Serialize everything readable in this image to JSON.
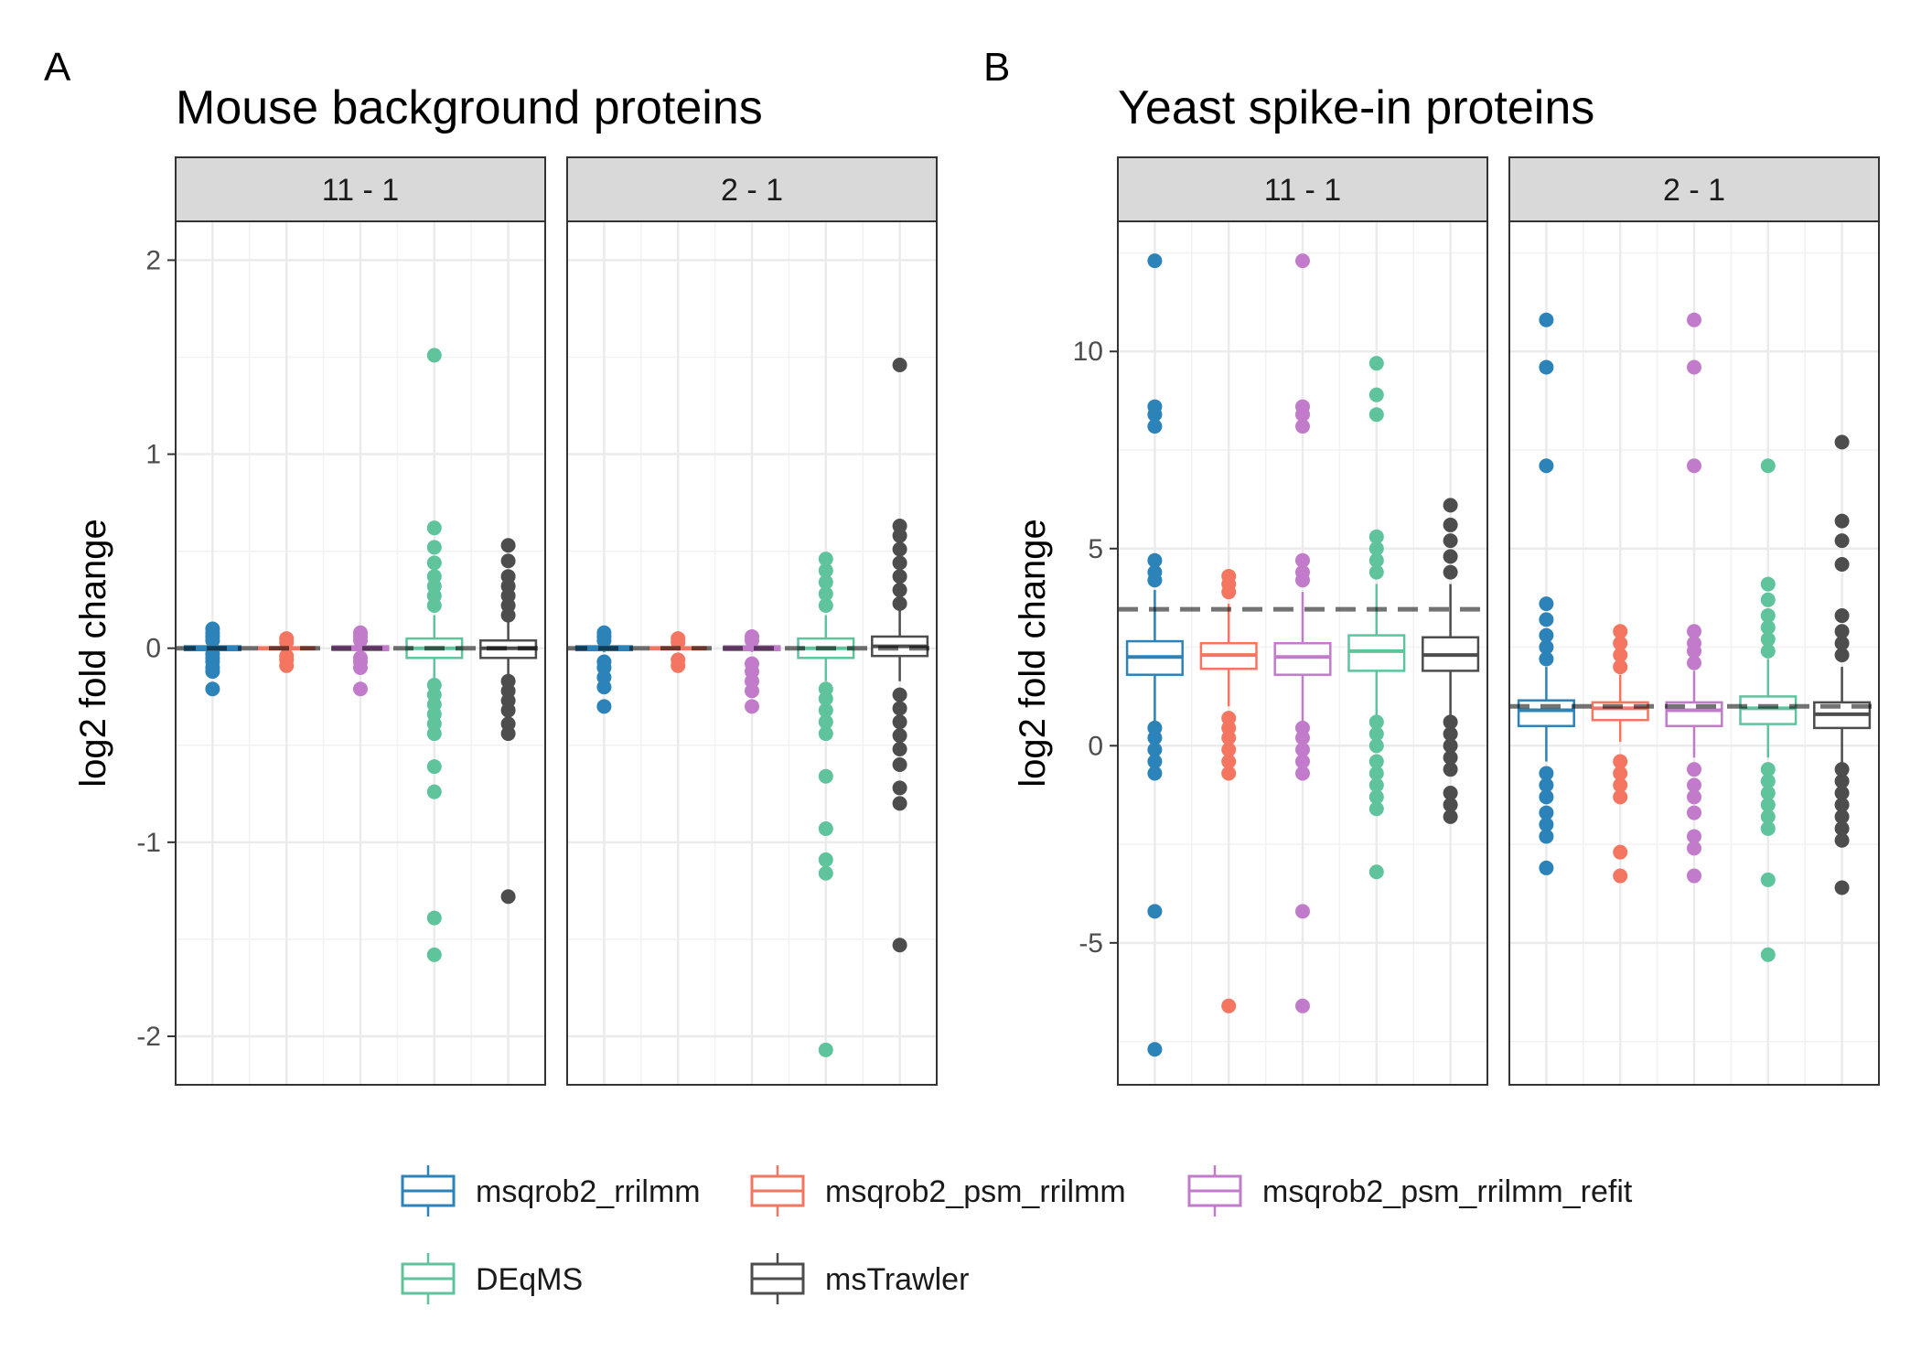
{
  "legend": {
    "items": [
      {
        "label": "msqrob2_rrilmm",
        "color": "#2B83BA"
      },
      {
        "label": "msqrob2_psm_rrilmm",
        "color": "#F47560"
      },
      {
        "label": "msqrob2_psm_rrilmm_refit",
        "color": "#C27BCB"
      },
      {
        "label": "DEqMS",
        "color": "#5FC39C"
      },
      {
        "label": "msTrawler",
        "color": "#4D4D4D"
      }
    ]
  },
  "chart_data": [
    {
      "panel_label": "A",
      "title": "Mouse background proteins",
      "type": "box",
      "ylabel": "log2 fold change",
      "ylim": [
        -2.25,
        2.2
      ],
      "yticks": [
        -2,
        -1,
        0,
        1,
        2
      ],
      "ytick_labels": [
        "-2",
        "-1",
        "0",
        "1",
        "2"
      ],
      "reference_line": 0,
      "facets": [
        {
          "label": "11 - 1",
          "series": [
            {
              "name": "msqrob2_rrilmm",
              "box": {
                "q1": -0.01,
                "median": 0.0,
                "q3": 0.01,
                "whisker_low": -0.02,
                "whisker_high": 0.02
              },
              "outliers": [
                -0.21,
                -0.12,
                -0.1,
                -0.07,
                -0.05,
                -0.03,
                0.04,
                0.06,
                0.08,
                0.1
              ]
            },
            {
              "name": "msqrob2_psm_rrilmm",
              "box": {
                "q1": -0.005,
                "median": 0.0,
                "q3": 0.005,
                "whisker_low": -0.01,
                "whisker_high": 0.01
              },
              "outliers": [
                -0.09,
                -0.06,
                -0.04,
                0.03,
                0.05
              ]
            },
            {
              "name": "msqrob2_psm_rrilmm_refit",
              "box": {
                "q1": -0.01,
                "median": 0.0,
                "q3": 0.01,
                "whisker_low": -0.02,
                "whisker_high": 0.02
              },
              "outliers": [
                -0.21,
                -0.1,
                -0.07,
                -0.05,
                0.04,
                0.06,
                0.08
              ]
            },
            {
              "name": "DEqMS",
              "box": {
                "q1": -0.05,
                "median": 0.0,
                "q3": 0.05,
                "whisker_low": -0.17,
                "whisker_high": 0.17
              },
              "outliers": [
                -1.58,
                -1.39,
                -0.74,
                -0.61,
                -0.44,
                -0.39,
                -0.34,
                -0.29,
                -0.24,
                -0.19,
                0.22,
                0.27,
                0.32,
                0.37,
                0.44,
                0.52,
                0.62,
                1.51
              ]
            },
            {
              "name": "msTrawler",
              "box": {
                "q1": -0.05,
                "median": 0.0,
                "q3": 0.04,
                "whisker_low": -0.16,
                "whisker_high": 0.16
              },
              "outliers": [
                -1.28,
                -0.44,
                -0.39,
                -0.32,
                -0.27,
                -0.22,
                -0.17,
                0.17,
                0.22,
                0.27,
                0.32,
                0.37,
                0.45,
                0.53
              ]
            }
          ]
        },
        {
          "label": "2 - 1",
          "series": [
            {
              "name": "msqrob2_rrilmm",
              "box": {
                "q1": -0.01,
                "median": 0.0,
                "q3": 0.01,
                "whisker_low": -0.02,
                "whisker_high": 0.02
              },
              "outliers": [
                -0.3,
                -0.2,
                -0.15,
                -0.1,
                -0.07,
                0.04,
                0.06,
                0.08
              ]
            },
            {
              "name": "msqrob2_psm_rrilmm",
              "box": {
                "q1": -0.005,
                "median": 0.0,
                "q3": 0.005,
                "whisker_low": -0.01,
                "whisker_high": 0.01
              },
              "outliers": [
                -0.09,
                -0.06,
                0.03,
                0.05
              ]
            },
            {
              "name": "msqrob2_psm_rrilmm_refit",
              "box": {
                "q1": -0.01,
                "median": 0.0,
                "q3": 0.01,
                "whisker_low": -0.02,
                "whisker_high": 0.02
              },
              "outliers": [
                -0.3,
                -0.22,
                -0.17,
                -0.12,
                -0.08,
                0.04,
                0.06
              ]
            },
            {
              "name": "DEqMS",
              "box": {
                "q1": -0.05,
                "median": 0.0,
                "q3": 0.05,
                "whisker_low": -0.17,
                "whisker_high": 0.17
              },
              "outliers": [
                -2.07,
                -1.16,
                -1.09,
                -0.93,
                -0.66,
                -0.44,
                -0.38,
                -0.32,
                -0.26,
                -0.21,
                0.22,
                0.28,
                0.34,
                0.4,
                0.46
              ]
            },
            {
              "name": "msTrawler",
              "box": {
                "q1": -0.04,
                "median": 0.01,
                "q3": 0.06,
                "whisker_low": -0.17,
                "whisker_high": 0.2
              },
              "outliers": [
                -1.53,
                -0.8,
                -0.72,
                -0.6,
                -0.52,
                -0.45,
                -0.38,
                -0.31,
                -0.24,
                0.23,
                0.3,
                0.37,
                0.44,
                0.51,
                0.58,
                0.63,
                1.46
              ]
            }
          ]
        }
      ]
    },
    {
      "panel_label": "B",
      "title": "Yeast spike-in proteins",
      "type": "box",
      "ylabel": "log2 fold change",
      "ylim": [
        -8.6,
        13.3
      ],
      "yticks": [
        -5,
        0,
        5,
        10
      ],
      "ytick_labels": [
        "-5",
        "0",
        "5",
        "10"
      ],
      "facets": [
        {
          "label": "11 - 1",
          "reference_line": 3.46,
          "series": [
            {
              "name": "msqrob2_rrilmm",
              "box": {
                "q1": 1.8,
                "median": 2.25,
                "q3": 2.65,
                "whisker_low": 0.6,
                "whisker_high": 3.95
              },
              "outliers": [
                -7.7,
                -4.2,
                -0.7,
                -0.4,
                -0.1,
                0.2,
                0.45,
                4.2,
                4.4,
                4.7,
                8.1,
                8.4,
                8.6,
                12.3
              ]
            },
            {
              "name": "msqrob2_psm_rrilmm",
              "box": {
                "q1": 1.95,
                "median": 2.3,
                "q3": 2.6,
                "whisker_low": 1.0,
                "whisker_high": 3.6
              },
              "outliers": [
                -6.6,
                -0.7,
                -0.4,
                -0.1,
                0.2,
                0.45,
                0.7,
                3.9,
                4.1,
                4.3
              ]
            },
            {
              "name": "msqrob2_psm_rrilmm_refit",
              "box": {
                "q1": 1.8,
                "median": 2.25,
                "q3": 2.6,
                "whisker_low": 0.6,
                "whisker_high": 3.9
              },
              "outliers": [
                -6.6,
                -4.2,
                -0.7,
                -0.4,
                -0.1,
                0.2,
                0.45,
                4.2,
                4.4,
                4.7,
                8.1,
                8.4,
                8.6,
                12.3
              ]
            },
            {
              "name": "DEqMS",
              "box": {
                "q1": 1.9,
                "median": 2.4,
                "q3": 2.8,
                "whisker_low": 0.7,
                "whisker_high": 4.1
              },
              "outliers": [
                -3.2,
                -1.6,
                -1.3,
                -1.0,
                -0.7,
                -0.4,
                0.0,
                0.3,
                0.6,
                4.4,
                4.7,
                5.0,
                5.3,
                8.4,
                8.9,
                9.7
              ]
            },
            {
              "name": "msTrawler",
              "box": {
                "q1": 1.9,
                "median": 2.3,
                "q3": 2.75,
                "whisker_low": 0.7,
                "whisker_high": 4.1
              },
              "outliers": [
                -1.8,
                -1.5,
                -1.2,
                -0.6,
                -0.3,
                0.0,
                0.3,
                0.6,
                4.4,
                4.8,
                5.2,
                5.6,
                6.1
              ]
            }
          ]
        },
        {
          "label": "2 - 1",
          "reference_line": 1.0,
          "series": [
            {
              "name": "msqrob2_rrilmm",
              "box": {
                "q1": 0.5,
                "median": 0.9,
                "q3": 1.15,
                "whisker_low": -0.4,
                "whisker_high": 2.0
              },
              "outliers": [
                -3.1,
                -2.3,
                -2.0,
                -1.7,
                -1.3,
                -1.0,
                -0.7,
                2.2,
                2.5,
                2.8,
                3.2,
                3.6,
                7.1,
                9.6,
                10.8
              ]
            },
            {
              "name": "msqrob2_psm_rrilmm",
              "box": {
                "q1": 0.65,
                "median": 0.95,
                "q3": 1.1,
                "whisker_low": 0.1,
                "whisker_high": 1.8
              },
              "outliers": [
                -3.3,
                -2.7,
                -1.3,
                -1.0,
                -0.7,
                -0.4,
                2.0,
                2.3,
                2.6,
                2.9
              ]
            },
            {
              "name": "msqrob2_psm_rrilmm_refit",
              "box": {
                "q1": 0.5,
                "median": 0.9,
                "q3": 1.1,
                "whisker_low": -0.3,
                "whisker_high": 1.9
              },
              "outliers": [
                -3.3,
                -2.6,
                -2.3,
                -1.7,
                -1.3,
                -1.0,
                -0.6,
                2.1,
                2.4,
                2.6,
                2.9,
                7.1,
                9.6,
                10.8
              ]
            },
            {
              "name": "DEqMS",
              "box": {
                "q1": 0.55,
                "median": 0.95,
                "q3": 1.25,
                "whisker_low": -0.3,
                "whisker_high": 2.2
              },
              "outliers": [
                -5.3,
                -3.4,
                -2.1,
                -1.8,
                -1.5,
                -1.2,
                -0.9,
                -0.6,
                2.4,
                2.7,
                3.0,
                3.3,
                3.7,
                4.1,
                7.1
              ]
            },
            {
              "name": "msTrawler",
              "box": {
                "q1": 0.45,
                "median": 0.8,
                "q3": 1.1,
                "whisker_low": -0.5,
                "whisker_high": 2.0
              },
              "outliers": [
                -3.6,
                -2.4,
                -2.1,
                -1.8,
                -1.5,
                -1.2,
                -0.9,
                -0.6,
                2.3,
                2.6,
                2.9,
                3.3,
                4.6,
                5.2,
                5.7,
                7.7
              ]
            }
          ]
        }
      ]
    }
  ]
}
